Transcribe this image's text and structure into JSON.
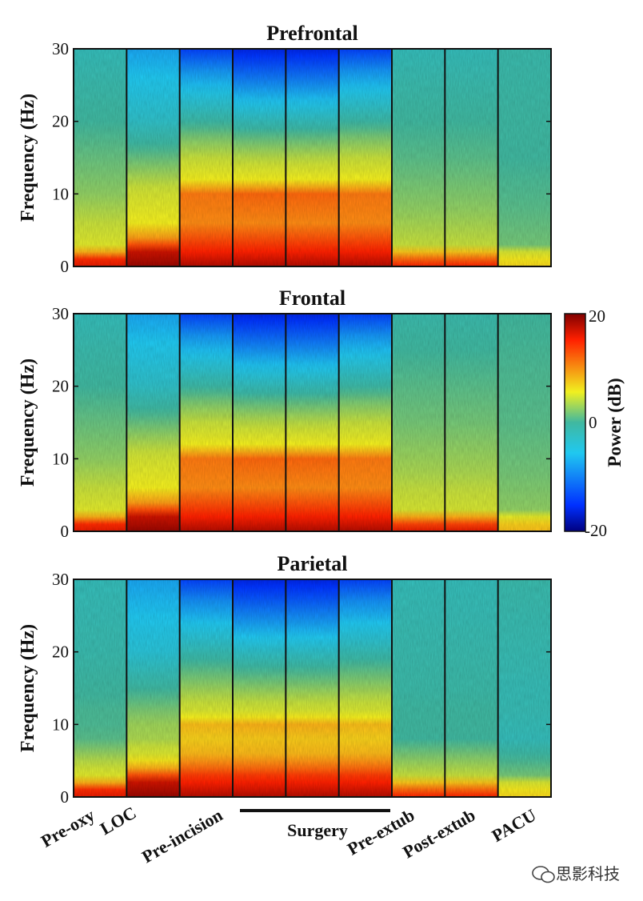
{
  "chart_data": {
    "type": "heatmap",
    "panels": [
      {
        "title": "Prefrontal"
      },
      {
        "title": "Frontal"
      },
      {
        "title": "Parietal"
      }
    ],
    "ylabel": "Frequency (Hz)",
    "ylim": [
      0,
      30
    ],
    "yticks": [
      "0",
      "10",
      "20",
      "30"
    ],
    "epochs": [
      "Pre-oxy",
      "LOC",
      "Pre-incision",
      "Surgery",
      "Pre-extub",
      "Post-extub",
      "PACU"
    ],
    "surgery_label": "Surgery",
    "colorbar": {
      "label": "Power (dB)",
      "range": [
        -20,
        20
      ],
      "ticks": [
        "20",
        "0",
        "-20"
      ],
      "colormap": "jet"
    }
  },
  "watermark": "思影科技"
}
